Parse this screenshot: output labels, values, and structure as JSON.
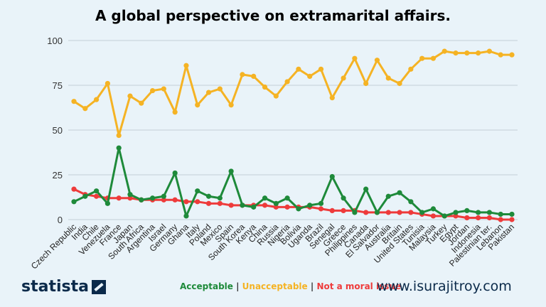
{
  "chart_data": {
    "type": "line",
    "title": "A global perspective on extramarital affairs.",
    "xlabel": "",
    "ylabel": "",
    "ylim": [
      0,
      100
    ],
    "yticks": [
      0,
      25,
      50,
      75,
      100
    ],
    "grid": true,
    "legend_position": "bottom",
    "categories": [
      "Czech Republic",
      "India",
      "Chile",
      "Venezuela",
      "France",
      "Japan",
      "South Africa",
      "Argentina",
      "Israel",
      "Germany",
      "Ghana",
      "Italy",
      "Poland",
      "Mexico",
      "Spain",
      "South Korea",
      "Kenya",
      "China",
      "Russia",
      "Nigeria",
      "Bolivia",
      "Uganda",
      "Brazil",
      "Senegal",
      "Greece",
      "Philippines",
      "Canada",
      "El Salvador",
      "Australia",
      "Britain",
      "United States",
      "Tunisia",
      "Malaysia",
      "Turkey",
      "Egypt",
      "Jordan",
      "Indonesia",
      "Palestinian ter.",
      "Lebanon",
      "Pakistan"
    ],
    "series": [
      {
        "name": "Acceptable",
        "color": "#1e8a3a",
        "values": [
          10,
          13,
          16,
          9,
          40,
          14,
          11,
          12,
          13,
          26,
          2,
          16,
          13,
          12,
          27,
          8,
          7,
          12,
          9,
          12,
          6,
          8,
          9,
          24,
          12,
          4,
          17,
          4,
          13,
          15,
          10,
          4,
          6,
          2,
          4,
          5,
          4,
          4,
          3,
          3
        ]
      },
      {
        "name": "Unacceptable",
        "color": "#f5b324",
        "values": [
          66,
          62,
          67,
          76,
          47,
          69,
          65,
          72,
          73,
          60,
          86,
          64,
          71,
          73,
          64,
          81,
          80,
          74,
          69,
          77,
          84,
          80,
          84,
          68,
          79,
          90,
          76,
          89,
          79,
          76,
          84,
          90,
          90,
          94,
          93,
          93,
          93,
          94,
          92,
          92
        ]
      },
      {
        "name": "Not a moral issue",
        "color": "#ee3b3b",
        "values": [
          17,
          14,
          13,
          12,
          12,
          12,
          11,
          11,
          11,
          11,
          10,
          10,
          9,
          9,
          8,
          8,
          8,
          8,
          7,
          7,
          7,
          7,
          6,
          5,
          5,
          5,
          4,
          4,
          4,
          4,
          4,
          3,
          2,
          2,
          2,
          1,
          1,
          1,
          0,
          0
        ]
      }
    ]
  },
  "branding": {
    "logo_text": "statista",
    "website": "www.isurajitroy.com"
  },
  "legend": {
    "separator": "|"
  }
}
